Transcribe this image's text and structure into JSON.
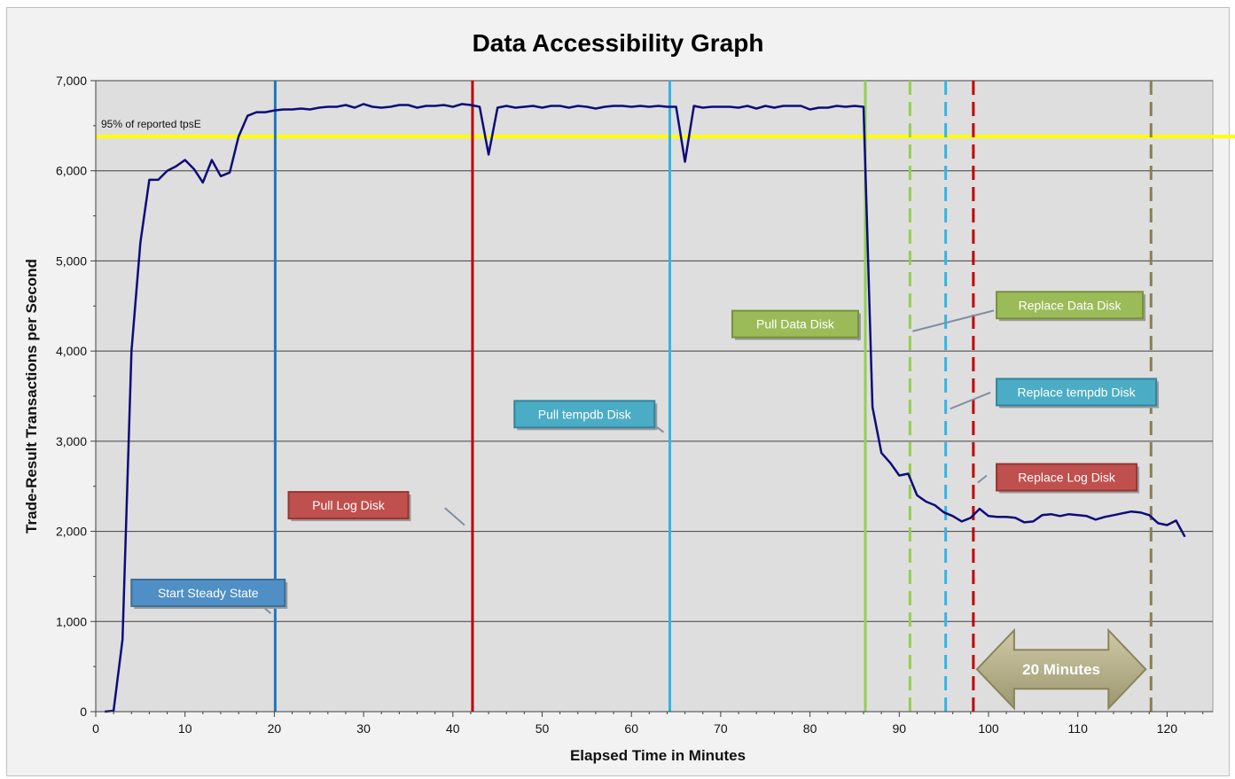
{
  "chart_data": {
    "type": "line",
    "title": "Data Accessibility Graph",
    "xlabel": "Elapsed Time in Minutes",
    "ylabel": "Trade-Result Transactions per Second",
    "xlim": [
      0,
      125
    ],
    "ylim": [
      0,
      7000
    ],
    "x_ticks": [
      "0",
      "10",
      "20",
      "30",
      "40",
      "50",
      "60",
      "70",
      "80",
      "90",
      "100",
      "110",
      "120"
    ],
    "y_ticks": [
      "0",
      "1,000",
      "2,000",
      "3,000",
      "4,000",
      "5,000",
      "6,000",
      "7,000"
    ],
    "grid": "horizontal",
    "series": [
      {
        "color": "#0c0c7a",
        "x": [
          1,
          2,
          3,
          4,
          5,
          6,
          7,
          8,
          9,
          10,
          11,
          12,
          13,
          14,
          15,
          16,
          17,
          18,
          19,
          20,
          21,
          22,
          23,
          24,
          25,
          26,
          27,
          28,
          29,
          30,
          31,
          32,
          33,
          34,
          35,
          36,
          37,
          38,
          39,
          40,
          41,
          42,
          43,
          44,
          45,
          46,
          47,
          48,
          49,
          50,
          51,
          52,
          53,
          54,
          55,
          56,
          57,
          58,
          59,
          60,
          61,
          62,
          63,
          64,
          65,
          66,
          67,
          68,
          69,
          70,
          71,
          72,
          73,
          74,
          75,
          76,
          77,
          78,
          79,
          80,
          81,
          82,
          83,
          84,
          85,
          86,
          87,
          88,
          89,
          90,
          91,
          92,
          93,
          94,
          95,
          96,
          97,
          98,
          99,
          100,
          101,
          102,
          103,
          104,
          105,
          106,
          107,
          108,
          109,
          110,
          111,
          112,
          113,
          114,
          115,
          116,
          117,
          118,
          119,
          120,
          121,
          122
        ],
        "y": [
          0,
          10,
          800,
          4000,
          5200,
          5900,
          5900,
          6000,
          6050,
          6120,
          6020,
          5870,
          6120,
          5940,
          5980,
          6380,
          6610,
          6650,
          6650,
          6670,
          6680,
          6680,
          6690,
          6680,
          6700,
          6710,
          6710,
          6730,
          6700,
          6740,
          6710,
          6700,
          6710,
          6730,
          6730,
          6700,
          6720,
          6720,
          6730,
          6710,
          6740,
          6730,
          6710,
          6180,
          6700,
          6720,
          6700,
          6710,
          6720,
          6700,
          6720,
          6720,
          6700,
          6720,
          6710,
          6690,
          6710,
          6720,
          6720,
          6710,
          6720,
          6710,
          6720,
          6710,
          6710,
          6100,
          6720,
          6700,
          6710,
          6710,
          6710,
          6700,
          6720,
          6690,
          6720,
          6700,
          6720,
          6720,
          6720,
          6680,
          6700,
          6700,
          6720,
          6710,
          6720,
          6710,
          3380,
          2870,
          2760,
          2620,
          2640,
          2400,
          2330,
          2290,
          2210,
          2170,
          2110,
          2150,
          2250,
          2170,
          2160,
          2160,
          2150,
          2100,
          2110,
          2180,
          2190,
          2170,
          2190,
          2180,
          2170,
          2130,
          2160,
          2180,
          2200,
          2220,
          2210,
          2180,
          2090,
          2070,
          2120,
          1940
        ]
      }
    ],
    "reference_line": {
      "y": 6380,
      "label": "95% of reported tpsE",
      "color": "#ffff00"
    },
    "event_lines": [
      {
        "x": 20.1,
        "color": "#1f77c0",
        "style": "solid"
      },
      {
        "x": 42.2,
        "color": "#c00000",
        "style": "solid"
      },
      {
        "x": 64.3,
        "color": "#33b5e5",
        "style": "solid"
      },
      {
        "x": 86.2,
        "color": "#92d050",
        "style": "solid"
      },
      {
        "x": 91.2,
        "color": "#92d050",
        "style": "dashed"
      },
      {
        "x": 95.2,
        "color": "#33b5e5",
        "style": "dashed"
      },
      {
        "x": 98.3,
        "color": "#c00000",
        "style": "dashed"
      },
      {
        "x": 118.2,
        "color": "#8a7f4e",
        "style": "dashed"
      }
    ],
    "annotations": [
      {
        "text": "Start Steady State",
        "bg": "#4f8fc6",
        "border": "#3c6e9a",
        "tx": 4,
        "ty": 1318,
        "x1": 17,
        "y1": 1310,
        "x2": 19.6,
        "y2": 1090
      },
      {
        "text": "Pull Log Disk",
        "bg": "#c0504d",
        "border": "#943634",
        "tx": 21.6,
        "ty": 2290,
        "x1": 39.1,
        "y1": 2260,
        "x2": 41.3,
        "y2": 2070
      },
      {
        "text": "Pull tempdb Disk",
        "bg": "#4bacc6",
        "border": "#31859c",
        "tx": 46.9,
        "ty": 3300,
        "x1": 61.1,
        "y1": 3290,
        "x2": 63.6,
        "y2": 3100
      },
      {
        "text": "Pull Data Disk",
        "bg": "#9bbb59",
        "border": "#76923c",
        "tx": 71.3,
        "ty": 4300,
        "x1": 83.2,
        "y1": 4300,
        "x2": 85.5,
        "y2": 4120
      },
      {
        "text": "Replace Data Disk",
        "bg": "#9bbb59",
        "border": "#76923c",
        "tx": 100.9,
        "ty": 4510,
        "x1": 100.6,
        "y1": 4450,
        "x2": 91.5,
        "y2": 4220
      },
      {
        "text": "Replace tempdb Disk",
        "bg": "#4bacc6",
        "border": "#31859c",
        "tx": 100.9,
        "ty": 3545,
        "x1": 100.2,
        "y1": 3540,
        "x2": 95.7,
        "y2": 3360
      },
      {
        "text": "Replace Log Disk",
        "bg": "#c0504d",
        "border": "#943634",
        "tx": 100.9,
        "ty": 2600,
        "x1": 99.8,
        "y1": 2620,
        "x2": 98.8,
        "y2": 2540
      }
    ],
    "span_arrow": {
      "text": "20 Minutes",
      "x_start": 98.3,
      "x_end": 118.2,
      "y": 470,
      "color": "#b9b38c",
      "border": "#8a845c"
    }
  }
}
